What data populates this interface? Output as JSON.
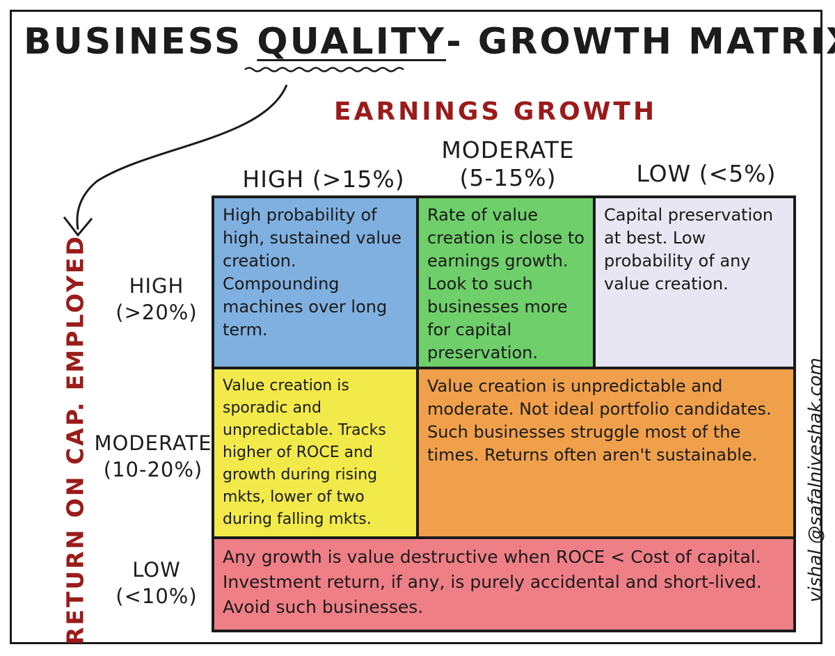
{
  "title": {
    "part1": "BUSINESS ",
    "part2": "QUALITY",
    "part3": "- GROWTH MATRIX"
  },
  "axes": {
    "top": "EARNINGS GROWTH",
    "left": "RETURN ON CAP. EMPLOYED"
  },
  "columns": [
    {
      "label": "HIGH (>15%)"
    },
    {
      "label": "MODERATE (5-15%)"
    },
    {
      "label": "LOW (<5%)"
    }
  ],
  "rows": [
    {
      "label": "HIGH (>20%)"
    },
    {
      "label": "MODERATE (10-20%)"
    },
    {
      "label": "LOW (<10%)"
    }
  ],
  "cells": {
    "high_high": "High probability of high, sustained value creation. Compounding machines over long term.",
    "high_moderate": "Rate of value creation is close to earnings growth. Look to such businesses more for capital preservation.",
    "high_low": "Capital preservation at best. Low probability of any value creation.",
    "moderate_high": "Value creation is sporadic and unpredictable. Tracks higher of ROCE and growth during rising mkts, lower of two during falling mkts.",
    "moderate_rest": "Value creation is unpredictable and moderate. Not ideal portfolio candidates. Such businesses struggle most of the times. Returns often aren't sustainable.",
    "low_all": "Any growth is value destructive when ROCE < Cost of capital. Investment return, if any, is purely accidental and short-lived. Avoid such businesses."
  },
  "colors": {
    "blue": "#7fb0e0",
    "green": "#6fcf6a",
    "lavender": "#e8e6f2",
    "yellow": "#f2e94a",
    "orange": "#f0a04b",
    "red": "#ef7f86",
    "axis_red": "#9b1b1b"
  },
  "credit": "vishal @safalniveshak.com"
}
